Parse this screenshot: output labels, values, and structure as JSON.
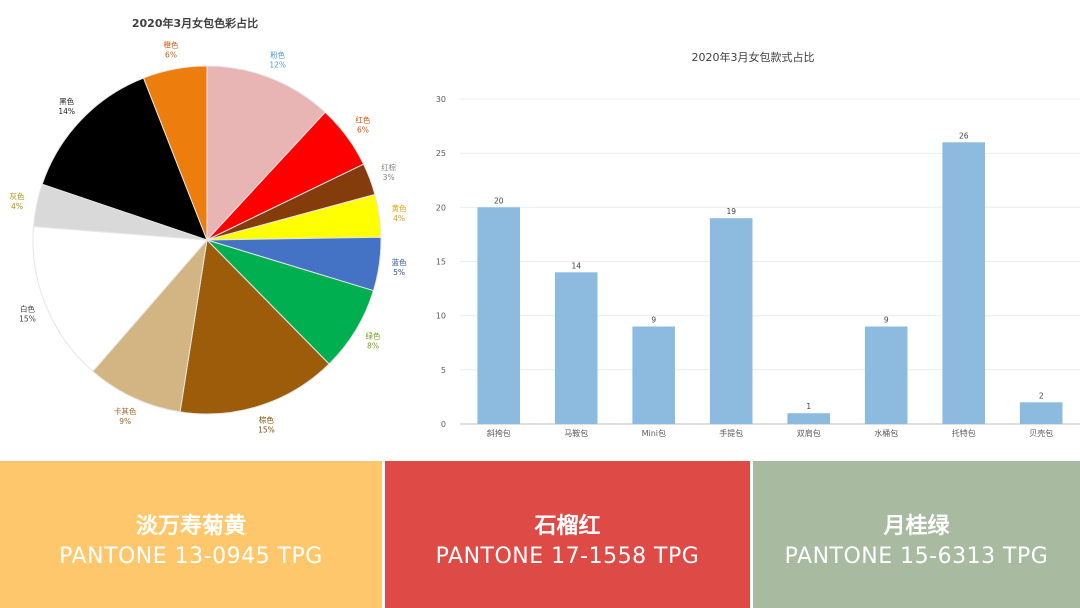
{
  "colors": {
    "pie": [
      "#E8B4B4",
      "#FF0000",
      "#843C0C",
      "#FFFF00",
      "#4472C4",
      "#00B050",
      "#9C5C0A",
      "#D2B582",
      "#FFFFFF",
      "#D9D9D9",
      "#000000",
      "#ED7D0C"
    ],
    "pie_labels": [
      "#4A9ACF",
      "#D85000",
      "#7F7F7F",
      "#E0A000",
      "#2F5496",
      "#70A020",
      "#7A4A00",
      "#A0622A",
      "#404040",
      "#B08C00",
      "#202020",
      "#C55A11"
    ],
    "bar": "#8DBBE0",
    "panel_left": "#FFC76B",
    "panel_mid": "#DE4A45",
    "panel_right": "#A8BBA0"
  },
  "chart_data": [
    {
      "type": "pie",
      "title": "2020年3月女包色彩占比",
      "labels": [
        "粉色",
        "红色",
        "红棕",
        "黄色",
        "蓝色",
        "绿色",
        "棕色",
        "卡其色",
        "白色",
        "灰色",
        "黑色",
        "橙色"
      ],
      "values": [
        12,
        6,
        3,
        4,
        5,
        8,
        15,
        9,
        15,
        4,
        14,
        6
      ],
      "value_labels": [
        "12%",
        "6%",
        "3%",
        "4%",
        "5%",
        "8%",
        "15%",
        "9%",
        "15%",
        "4%",
        "14%",
        "6%"
      ]
    },
    {
      "type": "bar",
      "title": "2020年3月女包款式占比",
      "categories": [
        "斜挎包",
        "马鞍包",
        "Mini包",
        "手提包",
        "双肩包",
        "水桶包",
        "托特包",
        "贝壳包"
      ],
      "values": [
        20,
        14,
        9,
        19,
        1,
        9,
        26,
        2
      ],
      "ylim": [
        0,
        30
      ],
      "yticks": [
        "0",
        "5",
        "10",
        "15",
        "20",
        "25",
        "30"
      ],
      "grid": true
    }
  ],
  "panels": [
    {
      "name": "淡万寿菊黄",
      "code": "PANTONE 13-0945 TPG"
    },
    {
      "name": "石榴红",
      "code": "PANTONE 17-1558 TPG"
    },
    {
      "name": "月桂绿",
      "code": "PANTONE 15-6313 TPG"
    }
  ]
}
